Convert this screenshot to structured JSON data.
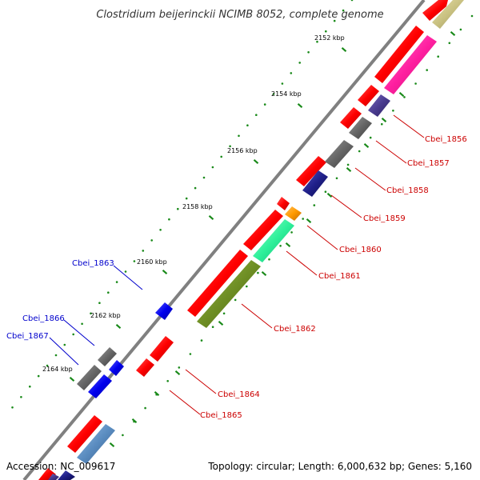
{
  "title": "Clostridium beijerinckii NCIMB 8052, complete genome",
  "footer": {
    "accession": "Accession: NC_009617",
    "info": "Topology: circular; Length: 6,000,632 bp; Genes: 5,160"
  },
  "ticks": [
    "2152 kbp",
    "2154 kbp",
    "2156 kbp",
    "2158 kbp",
    "2160 kbp",
    "2162 kbp",
    "2164 kbp"
  ],
  "gene_labels": {
    "cbei_1856": "Cbei_1856",
    "cbei_1857": "Cbei_1857",
    "cbei_1858": "Cbei_1858",
    "cbei_1859": "Cbei_1859",
    "cbei_1860": "Cbei_1860",
    "cbei_1861": "Cbei_1861",
    "cbei_1862": "Cbei_1862",
    "cbei_1863": "Cbei_1863",
    "cbei_1864": "Cbei_1864",
    "cbei_1865": "Cbei_1865",
    "cbei_1866": "Cbei_1866",
    "cbei_1867": "Cbei_1867"
  },
  "colors": {
    "backbone": "#808080",
    "cds": "#ff0000",
    "forward_label": "#cc0000",
    "reverse_label": "#0000cc",
    "feature_khaki": "#c8c080",
    "feature_pink": "#ff1fa0",
    "feature_slate": "#4a3c90",
    "feature_gray": "#666666",
    "feature_navy": "#20208a",
    "feature_orange": "#ff9a00",
    "feature_mint": "#2ef09a",
    "feature_olive": "#6e8e24",
    "feature_blue": "#0000ee",
    "feature_steel": "#5a8cc0",
    "tick_green": "#1a8a1a"
  }
}
